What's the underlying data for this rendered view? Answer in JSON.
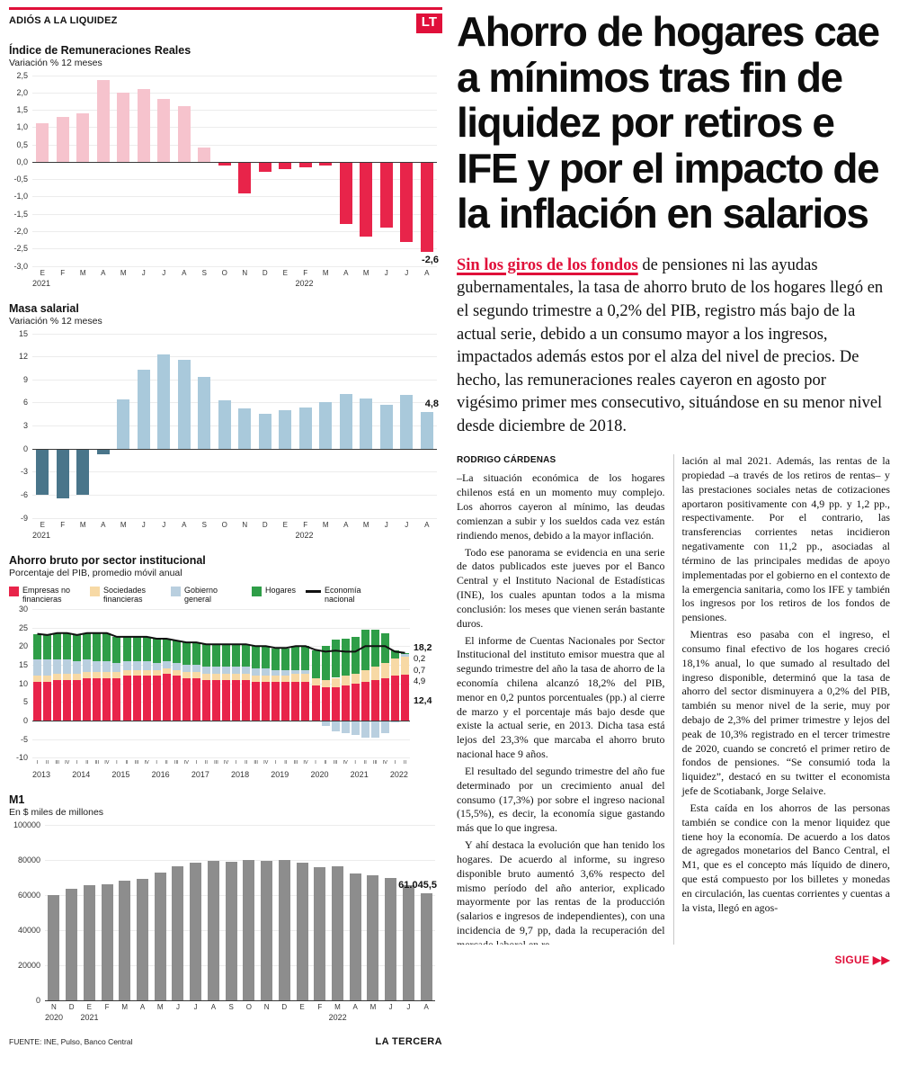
{
  "kicker": {
    "label": "ADIÓS A LA LIQUIDEZ",
    "logo": "LT"
  },
  "article": {
    "headline": "Ahorro de hogares cae a mínimos tras fin de liquidez por retiros e IFE y por el impacto de la inflación en salarios",
    "lead_highlight": "Sin los giros de los fondos",
    "lead_rest": " de pensiones ni las ayudas gubernamentales, la tasa de ahorro bruto de los hogares llegó en el segundo trimestre a 0,2% del PIB, registro más bajo de la actual serie, debido a un consumo mayor a los ingresos, impactados además estos por el alza del nivel de precios. De hecho, las remuneraciones reales cayeron en agosto por vigésimo primer mes consecutivo, situándose en su menor nivel desde diciembre de 2018.",
    "byline": "RODRIGO CÁRDENAS",
    "body": {
      "col1": [
        "–La situación económica de los hogares chilenos está en un momento muy complejo. Los ahorros cayeron al mínimo, las deudas comienzan a subir y los sueldos cada vez están rindiendo menos, debido a la mayor inflación.",
        "Todo ese panorama se evidencia en una serie de datos publicados este jueves por el Banco Central y el Instituto Nacional de Estadísticas (INE), los cuales apuntan todos a la misma conclusión: los meses que vienen serán bastante duros.",
        "El informe de Cuentas Nacionales por Sector Institucional del instituto emisor muestra que al segundo trimestre del año la tasa de ahorro de la economía chilena alcanzó 18,2% del PIB, menor en 0,2 puntos porcentuales (pp.) al cierre de marzo y el porcentaje más bajo desde que existe la actual serie, en 2013. Dicha tasa está lejos del 23,3% que marcaba el ahorro bruto nacional hace 9 años.",
        "El resultado del segundo trimestre del año fue determinado por un crecimiento anual del consumo (17,3%) por sobre el ingreso nacional (15,5%), es decir, la economía sigue gastando más que lo que ingresa.",
        "Y ahí destaca la evolución que han tenido los hogares. De acuerdo al informe, su ingreso disponible bruto aumentó 3,6% respecto del mismo período del año anterior, explicado mayormente por las rentas de la producción (salarios e ingresos de independientes), con una incidencia de 9,7 pp, dada la recuperación del mercado laboral en re-"
      ],
      "col2": [
        "lación al mal 2021. Además, las rentas de la propiedad –a través de los retiros de rentas– y las prestaciones sociales netas de cotizaciones aportaron positivamente con 4,9 pp. y 1,2 pp., respectivamente. Por el contrario, las transferencias corrientes netas incidieron negativamente con 11,2 pp., asociadas al término de las principales medidas de apoyo implementadas por el gobierno en el contexto de la emergencia sanitaria, como los IFE y también los ingresos por los retiros de los fondos de pensiones.",
        "Mientras eso pasaba con el ingreso, el consumo final efectivo de los hogares creció 18,1% anual, lo que sumado al resultado del ingreso disponible, determinó que la tasa de ahorro del sector disminuyera a 0,2% del PIB, también su menor nivel de la serie, muy por debajo de 2,3% del primer trimestre y lejos del peak de 10,3% registrado en el tercer trimestre de 2020, cuando se concretó el primer retiro de fondos de pensiones. “Se consumió toda la liquidez”, destacó en su twitter el economista jefe de Scotiabank, Jorge Selaive.",
        "Esta caída en los ahorros de las personas también se condice con la menor liquidez que tiene hoy la economía. De acuerdo a los datos de agregados monetarios del Banco Central, el M1, que es el concepto más líquido de dinero, que está compuesto por los billetes y monedas en circulación, las cuentas corrientes y cuentas a la vista, llegó en agos-"
      ]
    }
  },
  "footer": {
    "source": "FUENTE: INE, Pulso, Banco Central",
    "brand": "LA TERCERA",
    "continues": "SIGUE ▶▶"
  },
  "chart_data": [
    {
      "type": "bar",
      "title": "Índice de Remuneraciones Reales",
      "subtitle": "Variación % 12 meses",
      "categories": [
        "E",
        "F",
        "M",
        "A",
        "M",
        "J",
        "J",
        "A",
        "S",
        "O",
        "N",
        "D",
        "E",
        "F",
        "M",
        "A",
        "M",
        "J",
        "J",
        "A"
      ],
      "values": [
        1.1,
        1.3,
        1.4,
        2.35,
        2.0,
        2.1,
        1.8,
        1.6,
        0.4,
        -0.1,
        -0.9,
        -0.3,
        -0.2,
        -0.15,
        -0.1,
        -1.8,
        -2.15,
        -1.9,
        -2.3,
        -2.6
      ],
      "ylim": [
        -3.0,
        2.5
      ],
      "ytick_values": [
        2.5,
        2.0,
        1.5,
        1.0,
        0.5,
        0.0,
        -0.5,
        -1.0,
        -1.5,
        -2.0,
        -2.5,
        -3.0
      ],
      "ytick_labels": [
        "2,5",
        "2,0",
        "1,5",
        "1,0",
        "0,5",
        "0,0",
        "-0,5",
        "-1,0",
        "-1,5",
        "-2,0",
        "-2,5",
        "-3,0"
      ],
      "years": [
        {
          "index": 0,
          "label": "2021"
        },
        {
          "index": 13,
          "label": "2022"
        }
      ],
      "color_pos": "#f6c3cd",
      "color_neg": "#e8244a",
      "annotation": {
        "index": 19,
        "text": "-2,6"
      }
    },
    {
      "type": "bar",
      "title": "Masa salarial",
      "subtitle": "Variación % 12 meses",
      "categories": [
        "E",
        "F",
        "M",
        "A",
        "M",
        "J",
        "J",
        "A",
        "S",
        "O",
        "N",
        "D",
        "E",
        "F",
        "M",
        "A",
        "M",
        "J",
        "J",
        "A"
      ],
      "values": [
        -6.0,
        -6.5,
        -6.0,
        -0.8,
        6.4,
        10.3,
        12.3,
        11.5,
        9.3,
        6.3,
        5.2,
        4.5,
        5.0,
        5.3,
        6.1,
        7.1,
        6.5,
        5.7,
        7.0,
        4.8
      ],
      "ylim": [
        -9,
        15
      ],
      "ytick_values": [
        15,
        12,
        9,
        6,
        3,
        0,
        -3,
        -6,
        -9
      ],
      "ytick_labels": [
        "15",
        "12",
        "9",
        "6",
        "3",
        "0",
        "-3",
        "-6",
        "-9"
      ],
      "years": [
        {
          "index": 0,
          "label": "2021"
        },
        {
          "index": 13,
          "label": "2022"
        }
      ],
      "color_pos": "#a9c9db",
      "color_neg": "#49758a",
      "annotation": {
        "index": 19,
        "text": "4,8"
      }
    },
    {
      "type": "bar",
      "stacked": true,
      "title": "Ahorro bruto por sector institucional",
      "subtitle": "Porcentaje del PIB, promedio móvil anual",
      "categories": [
        "I",
        "II",
        "III",
        "IV",
        "I",
        "II",
        "III",
        "IV",
        "I",
        "II",
        "III",
        "IV",
        "I",
        "II",
        "III",
        "IV",
        "I",
        "II",
        "III",
        "IV",
        "I",
        "II",
        "III",
        "IV",
        "I",
        "II",
        "III",
        "IV",
        "I",
        "II",
        "III",
        "IV",
        "I",
        "II",
        "III",
        "IV",
        "I",
        "II"
      ],
      "series": [
        {
          "name": "Empresas no financieras",
          "color": "#e8244a",
          "values": [
            10.5,
            10.5,
            11,
            11,
            11,
            11.5,
            11.5,
            11.5,
            11.5,
            12,
            12,
            12,
            12,
            12.5,
            12,
            11.5,
            11.5,
            11,
            11,
            11,
            11,
            11,
            10.5,
            10.5,
            10.5,
            10.5,
            10.5,
            10.5,
            9.5,
            9,
            9,
            9.5,
            10,
            10.5,
            11,
            11.5,
            12,
            12.4
          ]
        },
        {
          "name": "Sociedades financieras",
          "color": "#f7d9a5",
          "values": [
            1.5,
            1.5,
            1.5,
            1.5,
            1.5,
            1.5,
            1.5,
            1.5,
            1.5,
            1.5,
            1.5,
            1.5,
            1.5,
            1.5,
            1.5,
            1.5,
            1.5,
            1.5,
            1.5,
            1.5,
            1.5,
            1.5,
            1.5,
            1.5,
            1.5,
            1.5,
            2,
            2,
            2,
            2,
            2.5,
            2.5,
            2.5,
            3,
            3.5,
            4,
            4.7,
            4.9
          ]
        },
        {
          "name": "Gobierno general",
          "color": "#b9cfdf",
          "values": [
            4.5,
            4.5,
            4,
            4,
            3.5,
            3.5,
            3,
            3,
            2.5,
            2.5,
            2.5,
            2.5,
            2,
            2,
            2,
            2,
            2,
            2,
            2,
            2,
            2,
            2,
            2,
            2,
            1.5,
            1.5,
            1,
            1,
            0,
            -1.5,
            -3,
            -3.5,
            -4,
            -4.5,
            -4.5,
            -3.5,
            -0.5,
            0.7
          ]
        },
        {
          "name": "Hogares",
          "color": "#2f9e48",
          "values": [
            6.8,
            6.5,
            7,
            7,
            7,
            7,
            7.5,
            7.5,
            7,
            6.5,
            6.5,
            6.5,
            6.5,
            6,
            6,
            6,
            6,
            6,
            6,
            6,
            6,
            6,
            6,
            6,
            6,
            6,
            6.5,
            6.5,
            7.5,
            9,
            10.3,
            10,
            10,
            11,
            10,
            8,
            2.3,
            0.2
          ]
        }
      ],
      "line": {
        "name": "Economía nacional",
        "color": "#111111",
        "values": [
          23.3,
          23,
          23.5,
          23.5,
          23,
          23.5,
          23.5,
          23.5,
          22.5,
          22.5,
          22.5,
          22.5,
          22,
          22,
          21.5,
          21,
          21,
          20.5,
          20.5,
          20.5,
          20.5,
          20.5,
          20,
          20,
          19.5,
          19.5,
          20,
          20,
          19,
          18.5,
          18.8,
          18.5,
          18.5,
          20,
          20,
          20,
          18.5,
          18.2
        ]
      },
      "ylim": [
        -10,
        30
      ],
      "ytick_values": [
        30,
        25,
        20,
        15,
        10,
        5,
        0,
        -5,
        -10
      ],
      "ytick_labels": [
        "30",
        "25",
        "20",
        "15",
        "10",
        "5",
        "0",
        "-5",
        "-10"
      ],
      "years": [
        {
          "index": 0,
          "label": "2013"
        },
        {
          "index": 4,
          "label": "2014"
        },
        {
          "index": 8,
          "label": "2015"
        },
        {
          "index": 12,
          "label": "2016"
        },
        {
          "index": 16,
          "label": "2017"
        },
        {
          "index": 20,
          "label": "2018"
        },
        {
          "index": 24,
          "label": "2019"
        },
        {
          "index": 28,
          "label": "2020"
        },
        {
          "index": 32,
          "label": "2021"
        },
        {
          "index": 36,
          "label": "2022"
        }
      ],
      "legend": [
        {
          "label": "Empresas no financieras",
          "color": "#e8244a",
          "kind": "swatch"
        },
        {
          "label": "Sociedades financieras",
          "color": "#f7d9a5",
          "kind": "swatch"
        },
        {
          "label": "Gobierno general",
          "color": "#b9cfdf",
          "kind": "swatch"
        },
        {
          "label": "Hogares",
          "color": "#2f9e48",
          "kind": "swatch"
        },
        {
          "label": "Economía nacional",
          "color": "#111111",
          "kind": "line"
        }
      ],
      "end_labels": [
        {
          "text": "18,2",
          "at": 19.8,
          "bold": true
        },
        {
          "text": "0,2",
          "at": 16.6,
          "bold": false
        },
        {
          "text": "0,7",
          "at": 13.6,
          "bold": false
        },
        {
          "text": "4,9",
          "at": 10.6,
          "bold": false
        },
        {
          "text": "12,4",
          "at": 5.5,
          "bold": true
        }
      ]
    },
    {
      "type": "bar",
      "title": "M1",
      "subtitle": "En $ miles de millones",
      "categories": [
        "N",
        "D",
        "E",
        "F",
        "M",
        "A",
        "M",
        "J",
        "J",
        "A",
        "S",
        "O",
        "N",
        "D",
        "E",
        "F",
        "M",
        "A",
        "M",
        "J",
        "J",
        "A"
      ],
      "values": [
        60000,
        63500,
        65500,
        66500,
        68500,
        69200,
        73000,
        76500,
        78500,
        79500,
        79200,
        80200,
        79800,
        80300,
        78500,
        76200,
        76500,
        72500,
        71200,
        70000,
        65500,
        61045.5
      ],
      "ylim": [
        0,
        100000
      ],
      "ytick_values": [
        100000,
        80000,
        60000,
        40000,
        20000,
        0
      ],
      "ytick_labels": [
        "100000",
        "80000",
        "60000",
        "40000",
        "20000",
        "0"
      ],
      "years": [
        {
          "index": 0,
          "label": "2020"
        },
        {
          "index": 2,
          "label": "2021"
        },
        {
          "index": 16,
          "label": "2022"
        }
      ],
      "color_pos": "#8d8d8d",
      "color_neg": "#8d8d8d",
      "annotation": {
        "index": 21,
        "text": "61.045,5"
      }
    }
  ]
}
